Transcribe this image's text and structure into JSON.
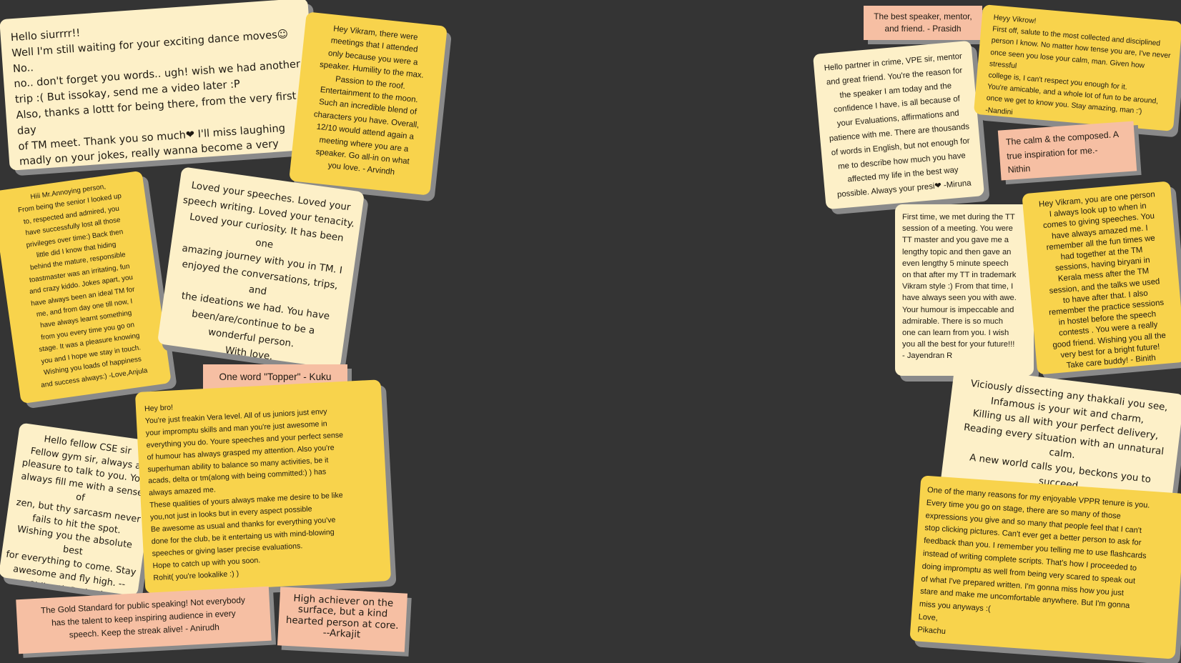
{
  "notes": {
    "aditi": "Hello siurrrr!!\nWell I'm still waiting for your exciting dance moves☺ No..\nno.. don't forget you words.. ugh! wish we had another\ntrip :( But issokay, send me a video later :P\nAlso, thanks a lottt for being there, from the very first day\nof TM meet. Thank you so much❤ I'll miss laughing\nmadly on your jokes, really wanna become a very natural\nhumourous speaker like you▯. Please visit us someday\nafter this pandemic is over▯ - Aditi",
    "arvindh": "Hey Vikram, there were\nmeetings that I attended\nonly because you were a\nspeaker. Humility to the max.\nPassion to the roof.\nEntertainment to the moon.\nSuch an incredible blend of\ncharacters you have. Overall,\n12/10 would attend again a\nmeeting where you are a\nspeaker. Go all-in on what\nyou love. - Arvindh",
    "anjula": "Hiii Mr.Annoying person,\nFrom being the senior I looked up\nto, respected and admired, you\nhave successfully lost all those\nprivileges over time:) Back then\nlittle did I know that hiding\nbehind the mature, responsible\ntoastmaster was an irritating, fun\nand crazy kiddo. Jokes apart, you\nhave always been an ideal TM for\nme, and from day one till now, I\nhave always learnt something\nfrom you every time you go on\nstage. It was a pleasure knowing\nyou and I hope we stay in touch.\nWishing you loads of happiness\nand success always:) -Love,Anjula",
    "harshahn": "Loved your speeches. Loved your\nspeech writing. Loved your tenacity.\nLoved your curiosity. It has been one\namazing journey with you in TM. I\nenjoyed the conversations, trips, and\nthe ideations we had. You have\nbeen/are/continue to be a\nwonderful person.\nWith love,\nFellow ExVP Ed, Harshahn",
    "kuku": "One word \"Topper\" - Kuku",
    "sidharth": "Hello fellow CSE sir\nFellow gym sir, always a\npleasure to talk to you. You\nalways fill me with a sense of\nzen, but thy sarcasm never\nfails to hit the spot.\nWishing you the absolute best\nfor everything to come. Stay\nawesome and fly high. --\nSidharth Prakash",
    "rohit": "Hey bro!\nYou're just freakin Vera level. All of us juniors just envy\nyour impromptu skills and man you're just awesome in\neverything you do. Youre speeches and your perfect sense\nof humour has always grasped my attention. Also you're\nsuperhuman ability to balance so many activities, be it\nacads, delta or tm(along with being committed:) ) has\nalways amazed me.\nThese qualities of yours always make me desire to be like\nyou,not just in looks but in every aspect possible\nBe awesome as usual and thanks for everything you've\ndone for the club, be it entertaing us with mind-blowing\nspeeches or giving laser precise evaluations.\nHope to catch up with you soon.\nRohit( you're lookalike :) )",
    "anirudh": "The Gold Standard for public speaking! Not everybody\nhas the talent to keep inspiring audience in every\nspeech. Keep the streak alive! - Anirudh",
    "arkajit": "High achiever on the\nsurface, but a kind\nhearted person at core.\n--Arkajit",
    "prasidh": "The best speaker, mentor,\nand friend. - Prasidh",
    "nandini": "Heyy Vikrow!\nFirst off, salute to the most collected and disciplined\nperson I know. No matter how tense you are, I've never\nonce seen you lose your calm, man. Given how stressful\ncollege is, I can't respect you enough for it.\nYou're amicable, and a whole lot of fun to be around,\nonce we get to know you. Stay amazing, man :')\n-Nandini",
    "miruna": "Hello partner in crime, VPE sir, mentor\nand great friend. You're the reason for\nthe speaker I am today and the\nconfidence I have, is all because of\nyour Evaluations, affirmations and\npatience with me. There are thousands\nof words in English, but not enough for\nme to describe how much you have\naffected my life in the best way\npossible. Always your presi❤ -Miruna",
    "nithin": "The calm & the composed. A\ntrue inspiration for me.-\nNithin",
    "jayendran": "First time, we met during the TT\nsession of a meeting. You were\nTT master and you gave me a\nlengthy topic and then gave an\neven lengthy 5 minute speech\non that after my TT in trademark\nVikram style :) From that time, I\nhave always seen you with awe.\nYour humour is impeccable and\nadmirable. There is so much\none can learn from you. I wish\nyou all the best for your future!!!\n- Jayendran R",
    "binith": "Hey Vikram, you are one person\nI always look up to when in\ncomes to giving speeches. You\nhave always amazed me. I\nremember all the fun times we\nhad together at the TM\nsessions, having biryani in\nKerala mess after the TM\nsession, and the talks we used\nto have after that. I also\nremember the practice sessions\nin hostel before the speech\ncontests . You were a really\ngood friend. Wishing you all the\nvery best for a bright future!\nTake care buddy! - Binith",
    "umar": "Viciously dissecting any thakkali you see,\nInfamous is your wit and charm,\nKilling us all with your perfect delivery,\nReading every situation with an unnatural calm.\nA new world calls you, beckons you to succeed\nMake of it big, for Vikram stays in the lead.\n-Umar",
    "pikachu": "One of the many reasons for my enjoyable VPPR tenure is you.\nEvery time you go on stage, there are so many of those\nexpressions you give and so many that people feel that I can't\nstop clicking pictures. Can't ever get a better person to ask for\nfeedback than you. I remember you telling me to use flashcards\ninstead of writing complete scripts. That's how I proceeded to\ndoing impromptu as well from being very scared to speak out\nof what I've prepared written. I'm gonna miss how you just\nstare and make me uncomfortable anywhere. But I'm gonna\nmiss you anyways :(\nLove,\nPikachu"
  }
}
